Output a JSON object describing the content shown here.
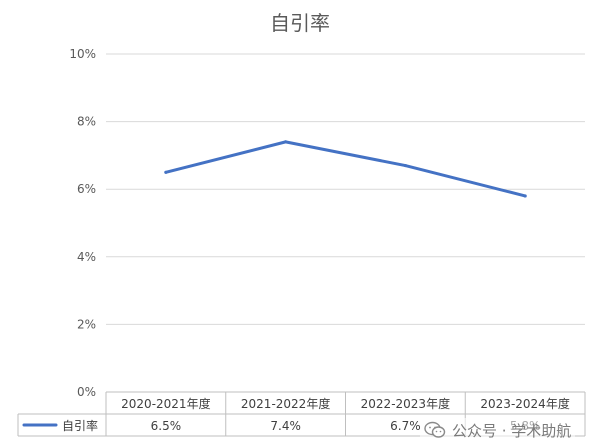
{
  "chart_data": {
    "type": "line",
    "title": "自引率",
    "categories": [
      "2020-2021年度",
      "2021-2022年度",
      "2022-2023年度",
      "2023-2024年度"
    ],
    "series": [
      {
        "name": "自引率",
        "values": [
          6.5,
          7.4,
          6.7,
          5.8
        ],
        "labels": [
          "6.5%",
          "7.4%",
          "6.7%",
          "5.8%"
        ],
        "color": "#4472C4"
      }
    ],
    "ylim": [
      0,
      10
    ],
    "yticks": [
      "0%",
      "2%",
      "4%",
      "6%",
      "8%",
      "10%"
    ],
    "ytick_values": [
      0,
      2,
      4,
      6,
      8,
      10
    ],
    "grid": true,
    "legend": "data-table",
    "gridline_color": "#D9D9D9"
  },
  "watermark": {
    "text": "公众号 · 学术助航",
    "icon": "wechat-icon"
  }
}
